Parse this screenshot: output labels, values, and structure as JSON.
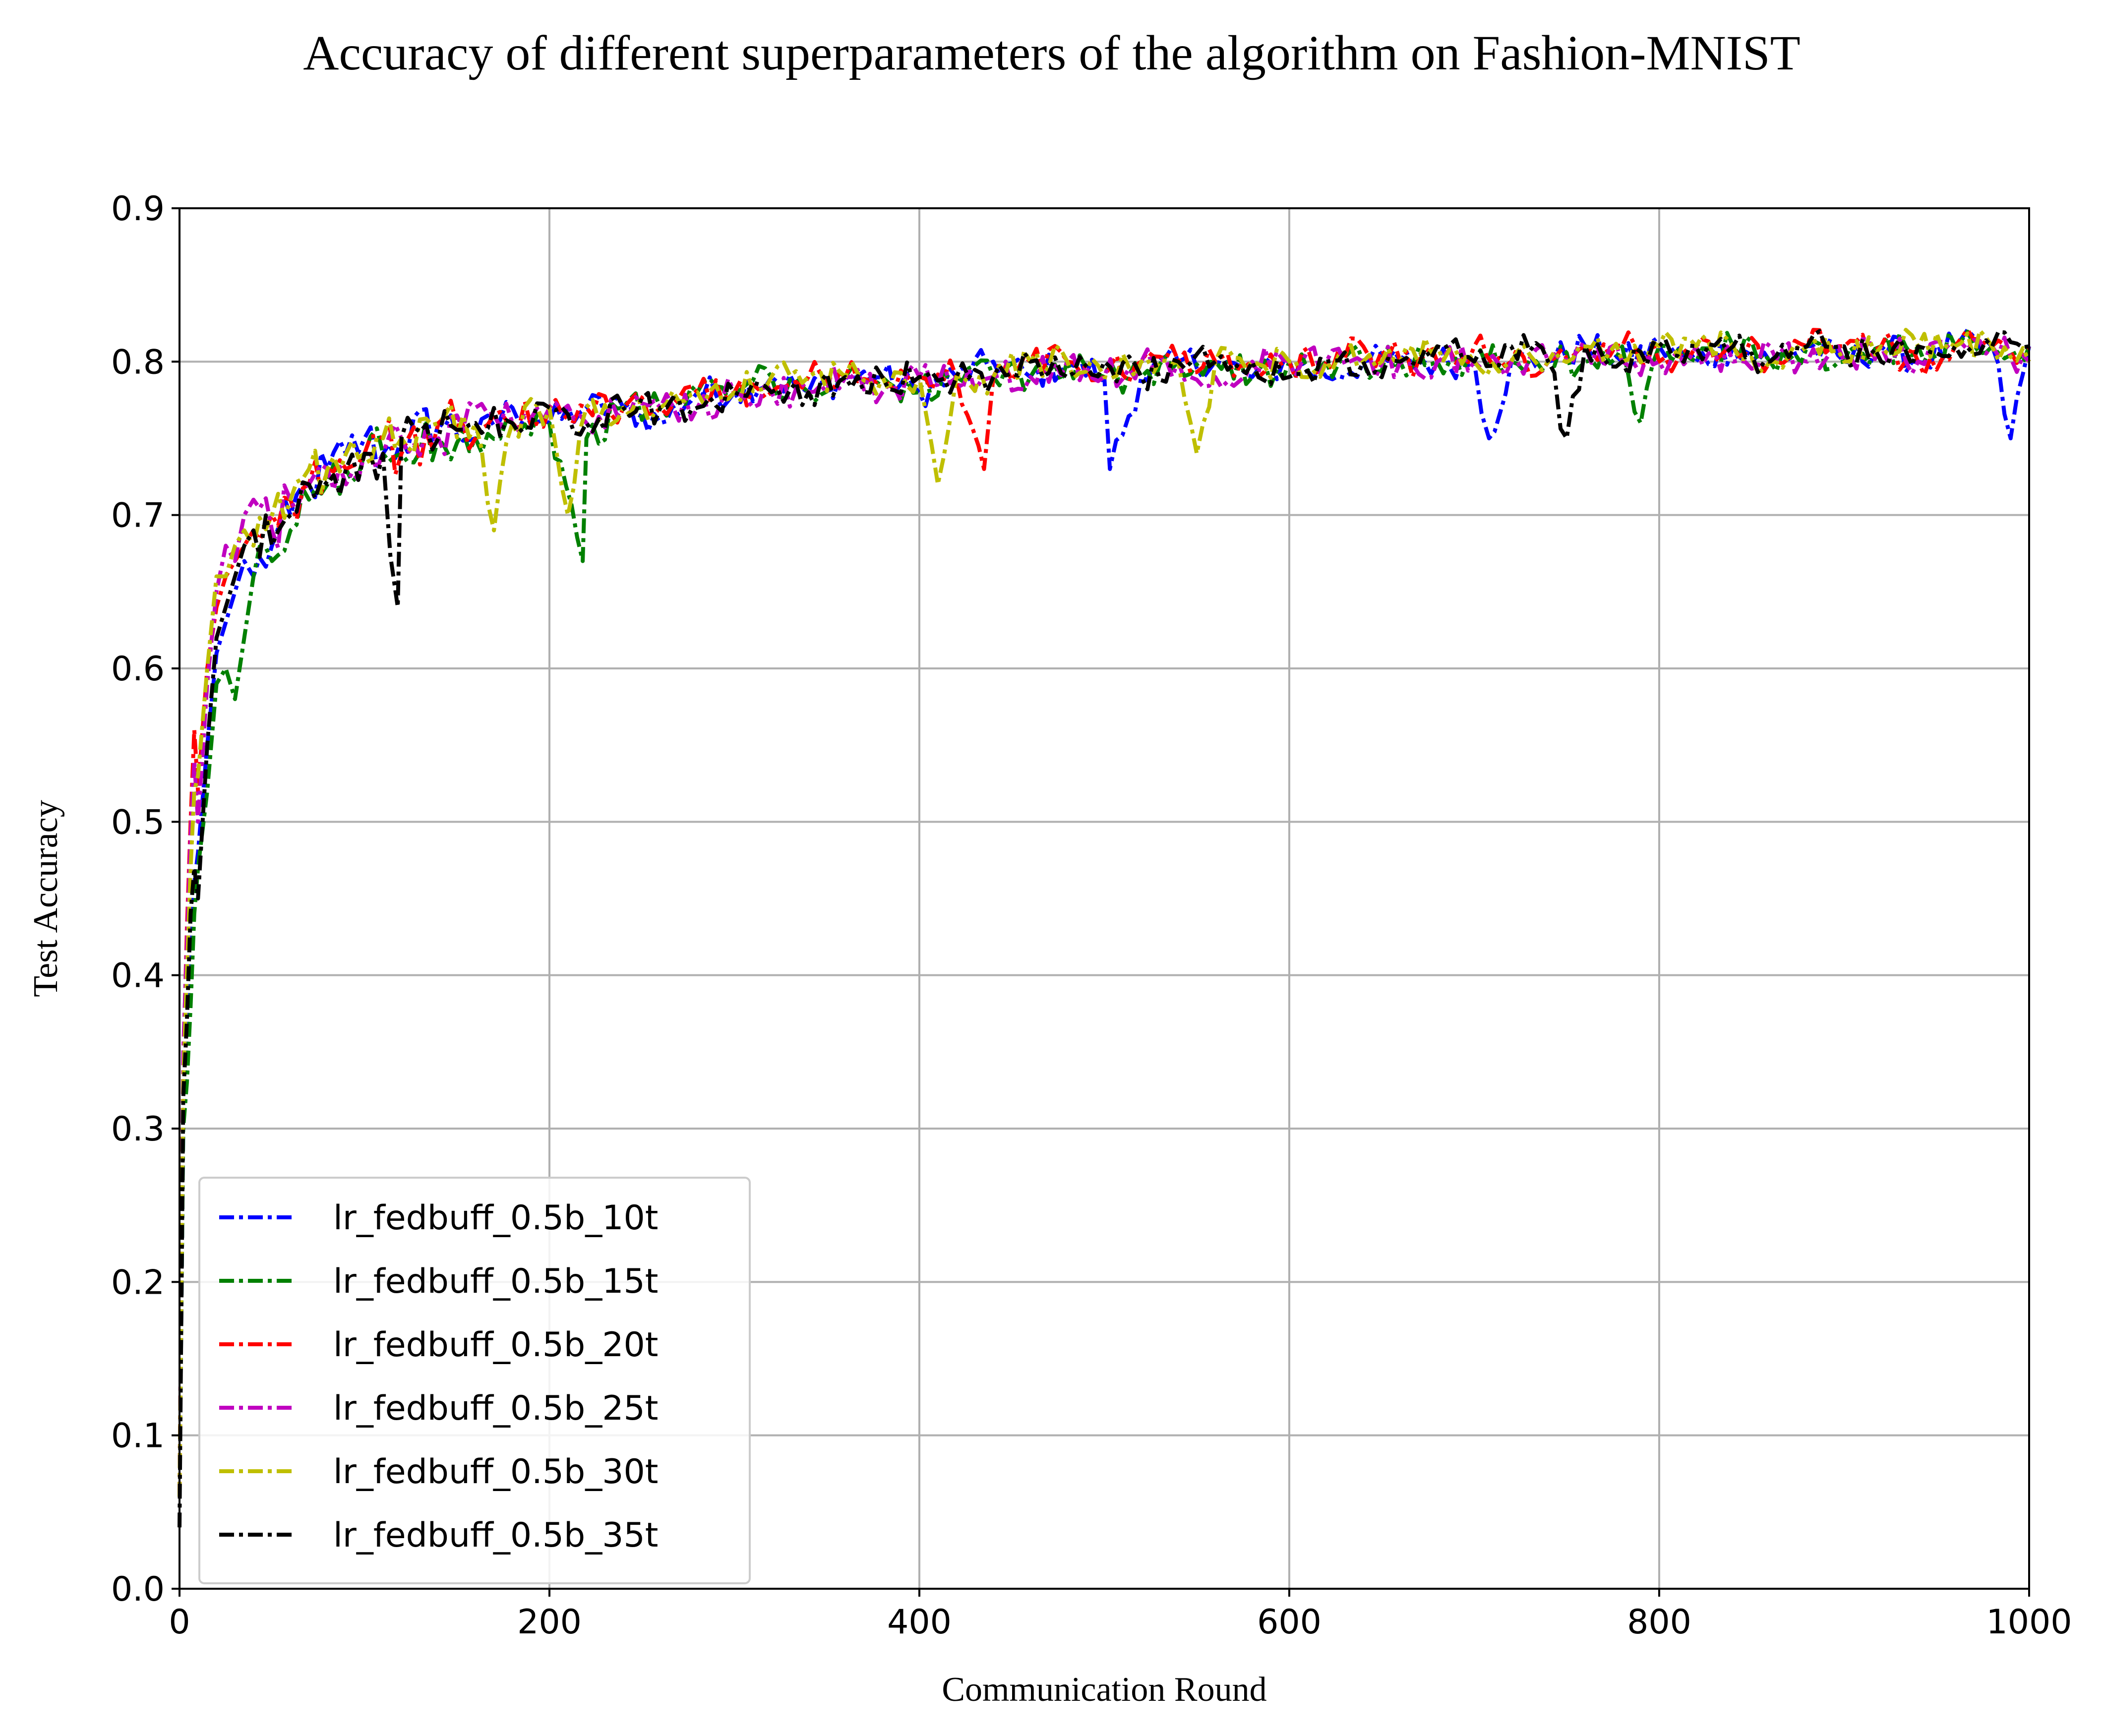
{
  "chart_data": {
    "type": "line",
    "title": "Accuracy of different superparameters of the algorithm on Fashion-MNIST",
    "xlabel": "Communication Round",
    "ylabel": "Test Accuracy",
    "xlim": [
      0,
      1000
    ],
    "ylim": [
      0.0,
      0.9
    ],
    "xticks": [
      "0",
      "200",
      "400",
      "600",
      "800",
      "1000"
    ],
    "yticks": [
      "0.0",
      "0.1",
      "0.2",
      "0.3",
      "0.4",
      "0.5",
      "0.6",
      "0.7",
      "0.8",
      "0.9"
    ],
    "grid": true,
    "legend_position": "lower-left",
    "series": [
      {
        "name": "lr_fedbuff_0.5b_10t",
        "color": "#0000ff",
        "x": [
          0,
          2,
          4,
          6,
          8,
          10,
          15,
          20,
          25,
          30,
          35,
          40,
          50,
          60,
          70,
          80,
          90,
          100,
          110,
          120,
          140,
          160,
          180,
          200,
          220,
          240,
          260,
          280,
          300,
          320,
          340,
          360,
          380,
          400,
          420,
          440,
          460,
          480,
          500,
          503,
          520,
          540,
          560,
          580,
          600,
          620,
          640,
          660,
          680,
          700,
          708,
          720,
          740,
          760,
          780,
          800,
          820,
          840,
          860,
          880,
          900,
          920,
          940,
          960,
          980,
          990,
          1000
        ],
        "y": [
          0.06,
          0.3,
          0.36,
          0.42,
          0.46,
          0.48,
          0.55,
          0.61,
          0.63,
          0.65,
          0.67,
          0.66,
          0.68,
          0.7,
          0.72,
          0.73,
          0.74,
          0.75,
          0.74,
          0.75,
          0.76,
          0.75,
          0.77,
          0.76,
          0.77,
          0.77,
          0.76,
          0.78,
          0.78,
          0.79,
          0.78,
          0.79,
          0.79,
          0.78,
          0.79,
          0.8,
          0.79,
          0.8,
          0.79,
          0.73,
          0.79,
          0.8,
          0.8,
          0.79,
          0.8,
          0.79,
          0.8,
          0.8,
          0.8,
          0.8,
          0.75,
          0.8,
          0.8,
          0.81,
          0.8,
          0.81,
          0.8,
          0.81,
          0.8,
          0.81,
          0.8,
          0.81,
          0.8,
          0.81,
          0.81,
          0.75,
          0.81
        ]
      },
      {
        "name": "lr_fedbuff_0.5b_15t",
        "color": "#008000",
        "x": [
          0,
          2,
          4,
          6,
          8,
          10,
          15,
          20,
          25,
          30,
          35,
          40,
          50,
          60,
          70,
          80,
          90,
          100,
          110,
          120,
          140,
          160,
          180,
          200,
          218,
          220,
          240,
          260,
          280,
          300,
          320,
          340,
          360,
          380,
          400,
          420,
          440,
          460,
          480,
          500,
          520,
          540,
          560,
          580,
          600,
          620,
          640,
          660,
          680,
          700,
          720,
          740,
          760,
          780,
          790,
          800,
          820,
          840,
          860,
          880,
          900,
          920,
          940,
          960,
          980,
          1000
        ],
        "y": [
          0.06,
          0.3,
          0.33,
          0.38,
          0.44,
          0.47,
          0.52,
          0.59,
          0.6,
          0.58,
          0.62,
          0.66,
          0.67,
          0.69,
          0.71,
          0.72,
          0.73,
          0.74,
          0.74,
          0.74,
          0.75,
          0.75,
          0.76,
          0.76,
          0.67,
          0.75,
          0.77,
          0.77,
          0.78,
          0.78,
          0.79,
          0.78,
          0.79,
          0.79,
          0.78,
          0.79,
          0.79,
          0.79,
          0.8,
          0.79,
          0.79,
          0.8,
          0.8,
          0.79,
          0.8,
          0.8,
          0.8,
          0.8,
          0.8,
          0.8,
          0.8,
          0.8,
          0.8,
          0.81,
          0.76,
          0.81,
          0.8,
          0.81,
          0.8,
          0.81,
          0.8,
          0.81,
          0.81,
          0.81,
          0.81,
          0.81
        ]
      },
      {
        "name": "lr_fedbuff_0.5b_20t",
        "color": "#ff0000",
        "x": [
          0,
          2,
          4,
          6,
          8,
          10,
          15,
          20,
          25,
          30,
          35,
          40,
          50,
          60,
          70,
          80,
          90,
          100,
          110,
          120,
          140,
          160,
          180,
          200,
          220,
          240,
          260,
          280,
          300,
          320,
          340,
          360,
          380,
          400,
          420,
          435,
          440,
          460,
          480,
          500,
          520,
          540,
          560,
          580,
          600,
          620,
          640,
          660,
          680,
          700,
          720,
          740,
          760,
          780,
          800,
          820,
          840,
          860,
          880,
          900,
          920,
          940,
          960,
          980,
          1000
        ],
        "y": [
          0.06,
          0.34,
          0.43,
          0.5,
          0.56,
          0.52,
          0.6,
          0.64,
          0.66,
          0.67,
          0.68,
          0.69,
          0.7,
          0.71,
          0.72,
          0.73,
          0.73,
          0.74,
          0.75,
          0.74,
          0.76,
          0.75,
          0.76,
          0.77,
          0.77,
          0.77,
          0.77,
          0.78,
          0.78,
          0.78,
          0.79,
          0.79,
          0.79,
          0.79,
          0.79,
          0.73,
          0.79,
          0.8,
          0.8,
          0.79,
          0.8,
          0.8,
          0.8,
          0.8,
          0.8,
          0.8,
          0.81,
          0.8,
          0.8,
          0.81,
          0.8,
          0.8,
          0.81,
          0.81,
          0.8,
          0.81,
          0.81,
          0.8,
          0.81,
          0.81,
          0.81,
          0.8,
          0.81,
          0.81,
          0.81
        ]
      },
      {
        "name": "lr_fedbuff_0.5b_25t",
        "color": "#c000c0",
        "x": [
          0,
          2,
          4,
          6,
          8,
          10,
          15,
          20,
          25,
          30,
          35,
          40,
          50,
          60,
          70,
          80,
          90,
          100,
          110,
          120,
          140,
          160,
          180,
          200,
          220,
          240,
          260,
          280,
          300,
          320,
          340,
          360,
          380,
          400,
          420,
          440,
          460,
          480,
          500,
          520,
          540,
          560,
          580,
          600,
          620,
          640,
          660,
          680,
          700,
          720,
          740,
          760,
          780,
          800,
          820,
          840,
          860,
          880,
          900,
          920,
          940,
          960,
          980,
          1000
        ],
        "y": [
          0.06,
          0.35,
          0.42,
          0.49,
          0.54,
          0.5,
          0.59,
          0.65,
          0.68,
          0.67,
          0.7,
          0.71,
          0.69,
          0.71,
          0.72,
          0.73,
          0.72,
          0.74,
          0.74,
          0.75,
          0.75,
          0.77,
          0.76,
          0.77,
          0.76,
          0.77,
          0.77,
          0.77,
          0.78,
          0.78,
          0.78,
          0.79,
          0.78,
          0.79,
          0.79,
          0.79,
          0.79,
          0.8,
          0.79,
          0.8,
          0.8,
          0.79,
          0.8,
          0.8,
          0.8,
          0.8,
          0.8,
          0.8,
          0.8,
          0.8,
          0.8,
          0.81,
          0.8,
          0.8,
          0.81,
          0.8,
          0.81,
          0.8,
          0.8,
          0.81,
          0.8,
          0.81,
          0.81,
          0.8
        ]
      },
      {
        "name": "lr_fedbuff_0.5b_30t",
        "color": "#bfbf00",
        "x": [
          0,
          2,
          4,
          6,
          8,
          10,
          15,
          20,
          25,
          30,
          35,
          40,
          50,
          60,
          70,
          80,
          90,
          100,
          110,
          120,
          140,
          160,
          170,
          180,
          200,
          210,
          220,
          240,
          260,
          280,
          300,
          320,
          340,
          360,
          380,
          400,
          410,
          420,
          440,
          460,
          480,
          500,
          520,
          540,
          550,
          560,
          580,
          600,
          620,
          640,
          660,
          680,
          700,
          720,
          740,
          760,
          780,
          800,
          820,
          840,
          860,
          880,
          900,
          920,
          940,
          960,
          980,
          1000
        ],
        "y": [
          0.06,
          0.33,
          0.4,
          0.47,
          0.52,
          0.53,
          0.6,
          0.66,
          0.66,
          0.68,
          0.69,
          0.68,
          0.7,
          0.71,
          0.73,
          0.73,
          0.74,
          0.74,
          0.75,
          0.75,
          0.76,
          0.76,
          0.69,
          0.76,
          0.77,
          0.7,
          0.77,
          0.77,
          0.77,
          0.78,
          0.78,
          0.79,
          0.79,
          0.79,
          0.79,
          0.79,
          0.72,
          0.79,
          0.79,
          0.8,
          0.8,
          0.79,
          0.8,
          0.8,
          0.74,
          0.8,
          0.8,
          0.8,
          0.8,
          0.8,
          0.8,
          0.81,
          0.8,
          0.8,
          0.8,
          0.81,
          0.8,
          0.81,
          0.81,
          0.81,
          0.8,
          0.81,
          0.8,
          0.81,
          0.81,
          0.81,
          0.81,
          0.8
        ]
      },
      {
        "name": "lr_fedbuff_0.5b_35t",
        "color": "#000000",
        "x": [
          0,
          2,
          4,
          6,
          8,
          10,
          15,
          20,
          25,
          30,
          35,
          40,
          50,
          60,
          70,
          80,
          90,
          100,
          110,
          118,
          120,
          140,
          160,
          180,
          200,
          220,
          240,
          260,
          280,
          300,
          320,
          340,
          360,
          380,
          400,
          420,
          440,
          460,
          480,
          500,
          520,
          540,
          560,
          580,
          600,
          620,
          640,
          660,
          680,
          700,
          720,
          740,
          750,
          760,
          780,
          800,
          820,
          840,
          860,
          880,
          900,
          920,
          940,
          960,
          980,
          1000
        ],
        "y": [
          0.04,
          0.32,
          0.37,
          0.44,
          0.47,
          0.45,
          0.55,
          0.62,
          0.64,
          0.66,
          0.68,
          0.69,
          0.68,
          0.7,
          0.72,
          0.72,
          0.73,
          0.74,
          0.74,
          0.64,
          0.75,
          0.75,
          0.76,
          0.76,
          0.77,
          0.76,
          0.77,
          0.77,
          0.77,
          0.78,
          0.78,
          0.78,
          0.79,
          0.79,
          0.79,
          0.79,
          0.79,
          0.8,
          0.79,
          0.8,
          0.79,
          0.8,
          0.8,
          0.8,
          0.79,
          0.8,
          0.8,
          0.8,
          0.81,
          0.8,
          0.81,
          0.8,
          0.75,
          0.81,
          0.8,
          0.81,
          0.81,
          0.81,
          0.8,
          0.81,
          0.81,
          0.8,
          0.81,
          0.81,
          0.81,
          0.81
        ]
      }
    ]
  }
}
